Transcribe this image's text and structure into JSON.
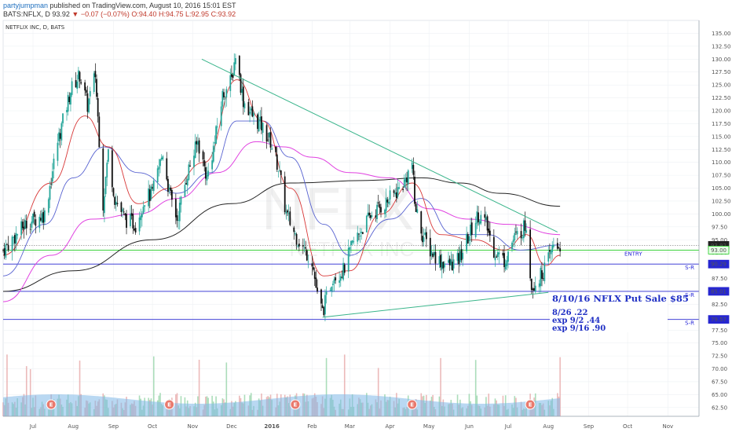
{
  "header": {
    "author": "partyjumpman",
    "published_text": "published on TradingView.com, August 10, 2016 15:01 EST",
    "symbol_line_prefix": "BATS:NFLX, D",
    "last": "93.92",
    "change": "−0.07 (−0.07%)",
    "ohlc_open": "O:94.40",
    "ohlc_high": "H:94.75",
    "ohlc_low": "L:92.95",
    "ohlc_close": "C:93.92"
  },
  "chart_data": {
    "type": "candlestick",
    "title": "NETFLIX INC, D, BATS",
    "watermark_symbol": "NFLX",
    "watermark_name": "NETFLIX INC",
    "y_range": [
      60.8,
      137.5
    ],
    "y_ticks": [
      "135.00",
      "132.50",
      "130.00",
      "127.50",
      "125.00",
      "122.50",
      "120.00",
      "117.50",
      "115.00",
      "112.50",
      "110.00",
      "107.50",
      "105.00",
      "102.50",
      "100.00",
      "97.50",
      "95.00",
      "92.50",
      "90.00",
      "87.50",
      "85.00",
      "82.50",
      "80.00",
      "77.50",
      "75.00",
      "72.50",
      "70.00",
      "67.50",
      "65.00",
      "62.50"
    ],
    "y_tick_values": [
      135,
      132.5,
      130,
      127.5,
      125,
      122.5,
      120,
      117.5,
      115,
      112.5,
      110,
      107.5,
      105,
      102.5,
      100,
      97.5,
      95,
      92.5,
      90,
      87.5,
      85,
      82.5,
      80,
      77.5,
      75,
      72.5,
      70,
      67.5,
      65,
      62.5
    ],
    "x_labels": [
      {
        "label": "Jul",
        "date": "2015-07-01"
      },
      {
        "label": "Aug",
        "date": "2015-08-01"
      },
      {
        "label": "Sep",
        "date": "2015-09-01"
      },
      {
        "label": "Oct",
        "date": "2015-10-01"
      },
      {
        "label": "Nov",
        "date": "2015-11-01"
      },
      {
        "label": "Dec",
        "date": "2015-12-01"
      },
      {
        "label": "2016",
        "date": "2016-01-01"
      },
      {
        "label": "Feb",
        "date": "2016-02-01"
      },
      {
        "label": "Mar",
        "date": "2016-03-01"
      },
      {
        "label": "Apr",
        "date": "2016-04-01"
      },
      {
        "label": "May",
        "date": "2016-05-01"
      },
      {
        "label": "Jun",
        "date": "2016-06-01"
      },
      {
        "label": "Jul",
        "date": "2016-07-01"
      },
      {
        "label": "Aug",
        "date": "2016-08-01"
      },
      {
        "label": "Sep",
        "date": "2016-09-01"
      },
      {
        "label": "Oct",
        "date": "2016-10-01"
      },
      {
        "label": "Nov",
        "date": "2016-11-01"
      }
    ],
    "x_range": [
      "2015-06-08",
      "2016-11-25"
    ],
    "price_path": [
      [
        "2015-06-08",
        93
      ],
      [
        "2015-06-25",
        98
      ],
      [
        "2015-07-10",
        100
      ],
      [
        "2015-07-20",
        114
      ],
      [
        "2015-07-30",
        124
      ],
      [
        "2015-08-06",
        127
      ],
      [
        "2015-08-12",
        121
      ],
      [
        "2015-08-18",
        127
      ],
      [
        "2015-08-24",
        102
      ],
      [
        "2015-08-28",
        112
      ],
      [
        "2015-09-02",
        103
      ],
      [
        "2015-09-10",
        99
      ],
      [
        "2015-09-18",
        98
      ],
      [
        "2015-09-25",
        103
      ],
      [
        "2015-10-01",
        104
      ],
      [
        "2015-10-09",
        112
      ],
      [
        "2015-10-14",
        104
      ],
      [
        "2015-10-20",
        99
      ],
      [
        "2015-10-28",
        108
      ],
      [
        "2015-11-05",
        114
      ],
      [
        "2015-11-12",
        107
      ],
      [
        "2015-11-18",
        114
      ],
      [
        "2015-11-24",
        123
      ],
      [
        "2015-12-01",
        126
      ],
      [
        "2015-12-04",
        131
      ],
      [
        "2015-12-10",
        122
      ],
      [
        "2015-12-17",
        119
      ],
      [
        "2015-12-24",
        117
      ],
      [
        "2015-12-31",
        114
      ],
      [
        "2016-01-06",
        109
      ],
      [
        "2016-01-12",
        100
      ],
      [
        "2016-01-19",
        96
      ],
      [
        "2016-01-26",
        93
      ],
      [
        "2016-02-01",
        91
      ],
      [
        "2016-02-05",
        84
      ],
      [
        "2016-02-09",
        81
      ],
      [
        "2016-02-17",
        88
      ],
      [
        "2016-02-25",
        89
      ],
      [
        "2016-03-03",
        94
      ],
      [
        "2016-03-10",
        97
      ],
      [
        "2016-03-18",
        100
      ],
      [
        "2016-03-28",
        102
      ],
      [
        "2016-04-05",
        104
      ],
      [
        "2016-04-12",
        106
      ],
      [
        "2016-04-18",
        110
      ],
      [
        "2016-04-20",
        102
      ],
      [
        "2016-04-26",
        96
      ],
      [
        "2016-05-02",
        93
      ],
      [
        "2016-05-09",
        91
      ],
      [
        "2016-05-16",
        90
      ],
      [
        "2016-05-24",
        91
      ],
      [
        "2016-06-01",
        96
      ],
      [
        "2016-06-08",
        100
      ],
      [
        "2016-06-14",
        98
      ],
      [
        "2016-06-20",
        93
      ],
      [
        "2016-06-28",
        91
      ],
      [
        "2016-07-05",
        95
      ],
      [
        "2016-07-12",
        97
      ],
      [
        "2016-07-15",
        98
      ],
      [
        "2016-07-19",
        86
      ],
      [
        "2016-07-26",
        88
      ],
      [
        "2016-08-01",
        91
      ],
      [
        "2016-08-05",
        94
      ],
      [
        "2016-08-10",
        93.92
      ]
    ],
    "sma200_path": [
      [
        "2015-06-08",
        85
      ],
      [
        "2015-08-01",
        89
      ],
      [
        "2015-10-01",
        95
      ],
      [
        "2015-12-01",
        102
      ],
      [
        "2016-01-15",
        106
      ],
      [
        "2016-03-15",
        106.5
      ],
      [
        "2016-04-25",
        107
      ],
      [
        "2016-05-25",
        106
      ],
      [
        "2016-06-25",
        104
      ],
      [
        "2016-08-10",
        101.5
      ]
    ],
    "sma100_path": [
      [
        "2015-06-08",
        83
      ],
      [
        "2015-07-15",
        92
      ],
      [
        "2015-08-15",
        99
      ],
      [
        "2015-09-20",
        100
      ],
      [
        "2015-10-20",
        103
      ],
      [
        "2015-11-20",
        108
      ],
      [
        "2015-12-20",
        114
      ],
      [
        "2016-01-10",
        113
      ],
      [
        "2016-02-01",
        111
      ],
      [
        "2016-03-01",
        108
      ],
      [
        "2016-04-01",
        107
      ],
      [
        "2016-05-01",
        101
      ],
      [
        "2016-06-01",
        99
      ],
      [
        "2016-07-01",
        98
      ],
      [
        "2016-08-10",
        96
      ]
    ],
    "sma50_path": [
      [
        "2015-06-08",
        88
      ],
      [
        "2015-07-10",
        98
      ],
      [
        "2015-08-01",
        107
      ],
      [
        "2015-08-25",
        113
      ],
      [
        "2015-09-20",
        108
      ],
      [
        "2015-10-20",
        104
      ],
      [
        "2015-11-15",
        108
      ],
      [
        "2015-12-05",
        118
      ],
      [
        "2015-12-25",
        118
      ],
      [
        "2016-01-15",
        111
      ],
      [
        "2016-02-10",
        98
      ],
      [
        "2016-03-01",
        92
      ],
      [
        "2016-04-01",
        99
      ],
      [
        "2016-04-25",
        103
      ],
      [
        "2016-05-20",
        96
      ],
      [
        "2016-06-15",
        96
      ],
      [
        "2016-07-10",
        93
      ],
      [
        "2016-08-10",
        94
      ]
    ],
    "sma20_path": [
      [
        "2015-06-08",
        92
      ],
      [
        "2015-07-15",
        106
      ],
      [
        "2015-08-10",
        119
      ],
      [
        "2015-08-28",
        113
      ],
      [
        "2015-09-20",
        102
      ],
      [
        "2015-10-15",
        105
      ],
      [
        "2015-11-10",
        110
      ],
      [
        "2015-12-05",
        126
      ],
      [
        "2015-12-25",
        118
      ],
      [
        "2016-01-15",
        105
      ],
      [
        "2016-02-10",
        88
      ],
      [
        "2016-03-01",
        89
      ],
      [
        "2016-03-25",
        100
      ],
      [
        "2016-04-18",
        106
      ],
      [
        "2016-05-10",
        96
      ],
      [
        "2016-06-05",
        95
      ],
      [
        "2016-06-28",
        93
      ],
      [
        "2016-07-15",
        96
      ],
      [
        "2016-07-30",
        90
      ],
      [
        "2016-08-10",
        92
      ]
    ],
    "trendlines": [
      {
        "name": "falling-trendline",
        "from": [
          "2015-11-08",
          130
        ],
        "to": [
          "2016-08-08",
          96.5
        ]
      },
      {
        "name": "rising-trendline",
        "from": [
          "2016-02-09",
          80
        ],
        "to": [
          "2016-08-01",
          84.8
        ]
      }
    ],
    "horizontal_levels": [
      {
        "name": "last-price",
        "value": 93.92,
        "label": "93.92",
        "style": "dotted"
      },
      {
        "name": "entry-level",
        "value": 93.0,
        "label": "93.00",
        "text": "ENTRY"
      },
      {
        "name": "sr-level-1",
        "value": 90.29,
        "label": "90.29",
        "text": "S-R"
      },
      {
        "name": "sr-level-2",
        "value": 85.01,
        "label": "85.01",
        "text": "S-R"
      },
      {
        "name": "sr-level-3",
        "value": 79.57,
        "label": "79.57",
        "text": "S-R"
      }
    ],
    "earnings_markers": [
      "2015-07-15",
      "2015-10-14",
      "2016-01-19",
      "2016-04-18",
      "2016-07-18"
    ],
    "earnings_label": "E",
    "note": {
      "title": "8/10/16 NFLX  Put Sale $85",
      "lines": [
        "8/26     .22",
        "exp 9/2 .44",
        "exp 9/16 .90"
      ]
    },
    "colors": {
      "up": "#26a69a",
      "down": "#111111",
      "sma200": "#222222",
      "sma100": "#e040e0",
      "sma50": "#5560d0",
      "sma20": "#d83838",
      "trendline": "#3ab58b",
      "level": "#2727d0",
      "entry": "#22cc22",
      "volume_up": "#8fd1a3",
      "volume_down": "#e6a3a3",
      "volume_ma": "#7fb8e8"
    },
    "volume": {
      "range": [
        0,
        1
      ]
    }
  }
}
